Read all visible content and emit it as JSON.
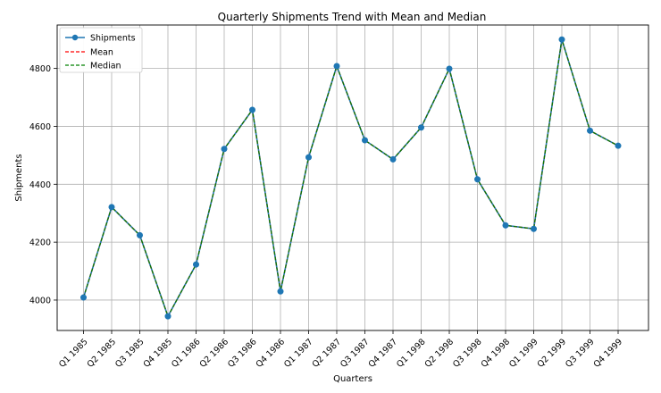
{
  "chart_data": {
    "type": "line",
    "title": "Quarterly Shipments Trend with Mean and Median",
    "xlabel": "Quarters",
    "ylabel": "Shipments",
    "categories": [
      "Q1 1985",
      "Q2 1985",
      "Q3 1985",
      "Q4 1985",
      "Q1 1986",
      "Q2 1986",
      "Q3 1986",
      "Q4 1986",
      "Q1 1987",
      "Q2 1987",
      "Q3 1987",
      "Q4 1987",
      "Q1 1998",
      "Q2 1998",
      "Q3 1998",
      "Q4 1998",
      "Q1 1999",
      "Q2 1999",
      "Q3 1999",
      "Q4 1999"
    ],
    "yticks": [
      "4000",
      "4200",
      "4400",
      "4600",
      "4800"
    ],
    "ylim": [
      3895,
      4950
    ],
    "grid": true,
    "legend_position": "top-left",
    "series": [
      {
        "name": "Shipments",
        "color": "#1f77b4",
        "style": "solid-with-markers",
        "values": [
          4009,
          4321,
          4224,
          3944,
          4123,
          4522,
          4657,
          4030,
          4493,
          4808,
          4552,
          4486,
          4596,
          4799,
          4417,
          4258,
          4246,
          4900,
          4585,
          4533
        ]
      },
      {
        "name": "Mean",
        "color": "#ff0000",
        "style": "dashed",
        "values": [
          4009,
          4321,
          4224,
          3944,
          4123,
          4522,
          4657,
          4030,
          4493,
          4808,
          4552,
          4486,
          4596,
          4799,
          4417,
          4258,
          4246,
          4900,
          4585,
          4533
        ]
      },
      {
        "name": "Median",
        "color": "#008000",
        "style": "dashed",
        "values": [
          4009,
          4321,
          4224,
          3944,
          4123,
          4522,
          4657,
          4030,
          4493,
          4808,
          4552,
          4486,
          4596,
          4799,
          4417,
          4258,
          4246,
          4900,
          4585,
          4533
        ]
      }
    ]
  }
}
